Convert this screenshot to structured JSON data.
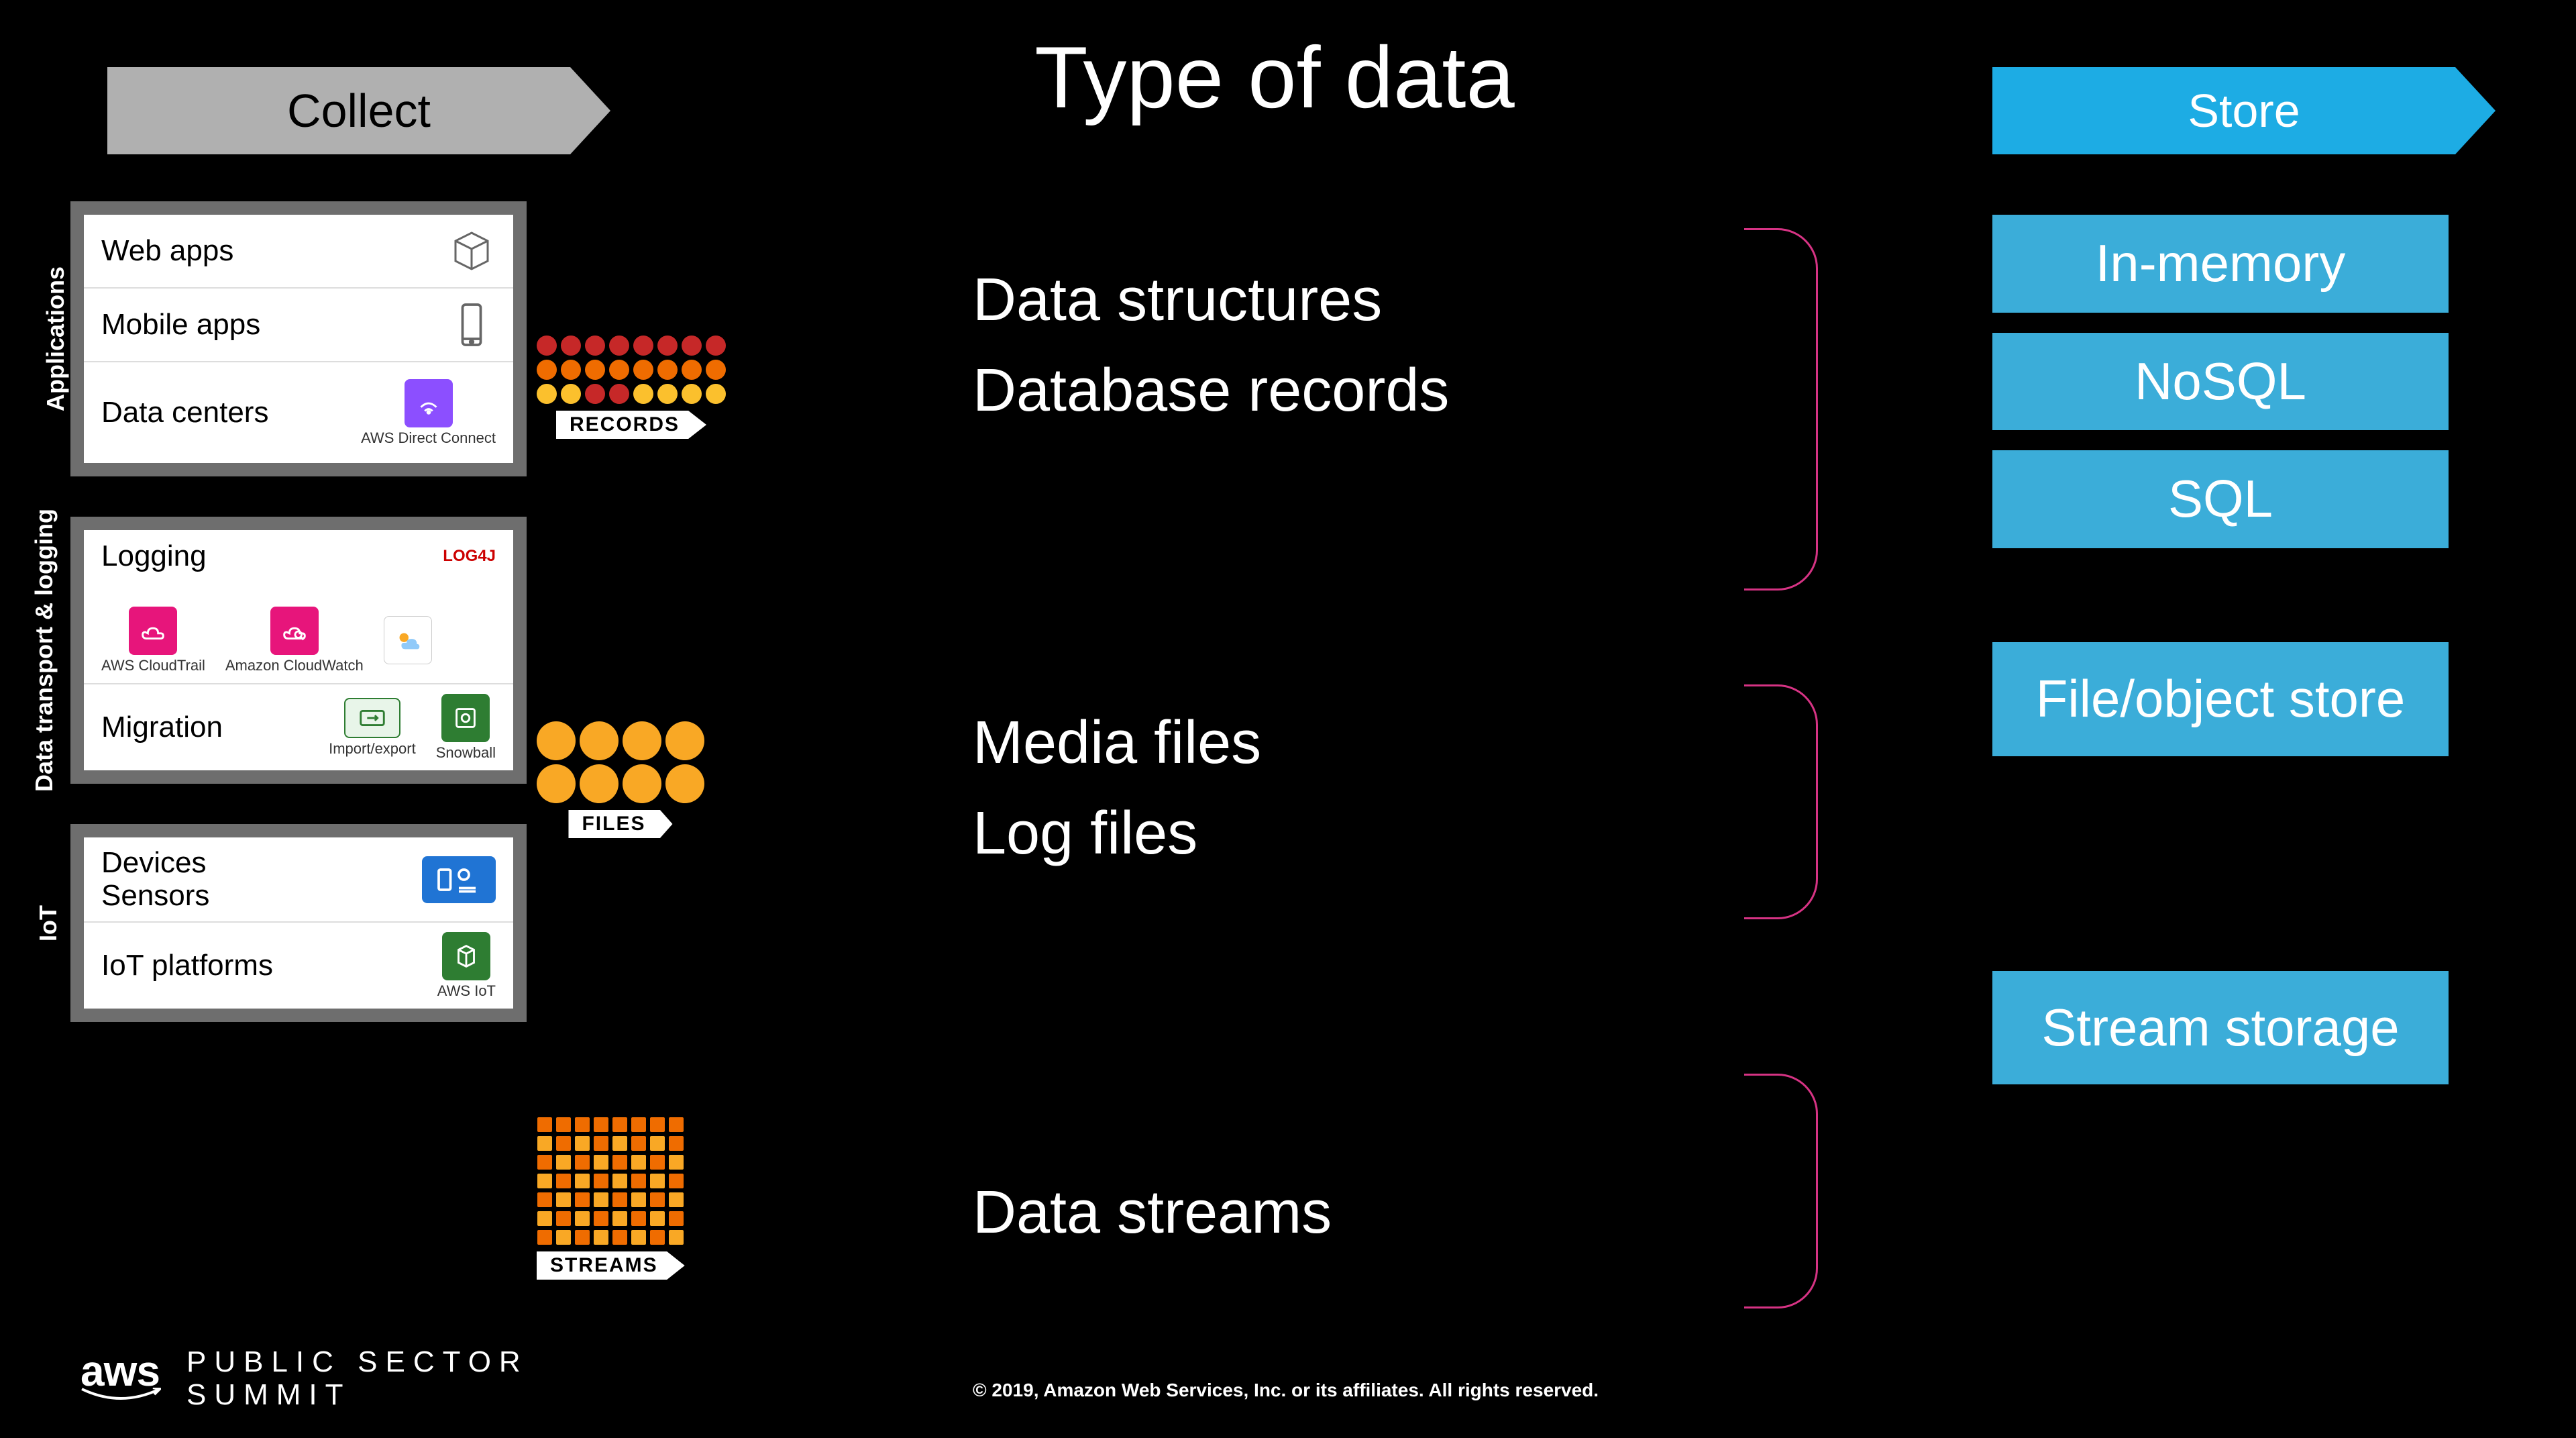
{
  "title": "Type of data",
  "banners": {
    "collect": "Collect",
    "store": "Store"
  },
  "collect": {
    "groups": [
      {
        "label": "Applications",
        "rows": [
          {
            "label": "Web apps"
          },
          {
            "label": "Mobile apps"
          },
          {
            "label": "Data centers",
            "sub": "AWS Direct Connect"
          }
        ]
      },
      {
        "label": "Data transport & logging",
        "rows": [
          {
            "label": "Logging",
            "sub1": "AWS CloudTrail",
            "sub2": "Amazon CloudWatch",
            "sub3": "LOG4J"
          },
          {
            "label": "Migration",
            "sub1": "Import/export",
            "sub2": "Snowball"
          }
        ]
      },
      {
        "label": "IoT",
        "rows": [
          {
            "label": "Devices Sensors"
          },
          {
            "label": "IoT platforms",
            "sub": "AWS IoT"
          }
        ]
      }
    ]
  },
  "clusters": {
    "records": {
      "label": "RECORDS",
      "dot_size": 30,
      "rows": [
        [
          "#c62828",
          "#c62828",
          "#c62828",
          "#c62828",
          "#c62828",
          "#c62828",
          "#c62828",
          "#c62828"
        ],
        [
          "#ef6c00",
          "#ef6c00",
          "#ef6c00",
          "#ef6c00",
          "#ef6c00",
          "#ef6c00",
          "#ef6c00",
          "#ef6c00"
        ],
        [
          "#fbc02d",
          "#fbc02d",
          "#c62828",
          "#c62828",
          "#fbc02d",
          "#fbc02d",
          "#fbc02d",
          "#fbc02d"
        ]
      ]
    },
    "files": {
      "label": "FILES",
      "dot_size": 58,
      "rows": [
        [
          "#f9a825",
          "#f9a825",
          "#f9a825",
          "#f9a825"
        ],
        [
          "#f9a825",
          "#f9a825",
          "#f9a825",
          "#f9a825"
        ]
      ]
    },
    "streams": {
      "label": "STREAMS",
      "dot_size": 22,
      "shape": "square",
      "rows": [
        [
          "#ef6c00",
          "#ef6c00",
          "#ef6c00",
          "#ef6c00",
          "#ef6c00",
          "#ef6c00",
          "#ef6c00",
          "#ef6c00"
        ],
        [
          "#f9a825",
          "#ef6c00",
          "#f9a825",
          "#ef6c00",
          "#f9a825",
          "#ef6c00",
          "#f9a825",
          "#ef6c00"
        ],
        [
          "#ef6c00",
          "#f9a825",
          "#ef6c00",
          "#f9a825",
          "#ef6c00",
          "#f9a825",
          "#ef6c00",
          "#f9a825"
        ],
        [
          "#f9a825",
          "#ef6c00",
          "#f9a825",
          "#ef6c00",
          "#f9a825",
          "#ef6c00",
          "#f9a825",
          "#ef6c00"
        ],
        [
          "#ef6c00",
          "#f9a825",
          "#ef6c00",
          "#f9a825",
          "#ef6c00",
          "#f9a825",
          "#ef6c00",
          "#f9a825"
        ],
        [
          "#f9a825",
          "#ef6c00",
          "#f9a825",
          "#ef6c00",
          "#f9a825",
          "#ef6c00",
          "#f9a825",
          "#ef6c00"
        ],
        [
          "#ef6c00",
          "#f9a825",
          "#ef6c00",
          "#f9a825",
          "#ef6c00",
          "#f9a825",
          "#ef6c00",
          "#f9a825"
        ]
      ]
    }
  },
  "types": {
    "hot": {
      "lines": [
        "Data structures",
        "Database records"
      ]
    },
    "warm": {
      "lines": [
        "Media files",
        "Log files"
      ]
    },
    "cold": {
      "lines": [
        "Data streams"
      ]
    }
  },
  "store": {
    "hot": [
      "In-memory",
      "NoSQL",
      "SQL"
    ],
    "warm": [
      "File/object store"
    ],
    "cold": [
      "Stream storage"
    ]
  },
  "footer": {
    "logo": "aws",
    "summit1": "PUBLIC SECTOR",
    "summit2": "SUMMIT",
    "copyright": "© 2019, Amazon Web Services, Inc. or its affiliates. All rights reserved."
  },
  "colors": {
    "bg": "#000000",
    "collect_banner": "#b0b0b0",
    "store_banner": "#1dace4",
    "store_box": "#3badd9",
    "group_bg": "#6e6e6e",
    "brace": "#d63384"
  }
}
